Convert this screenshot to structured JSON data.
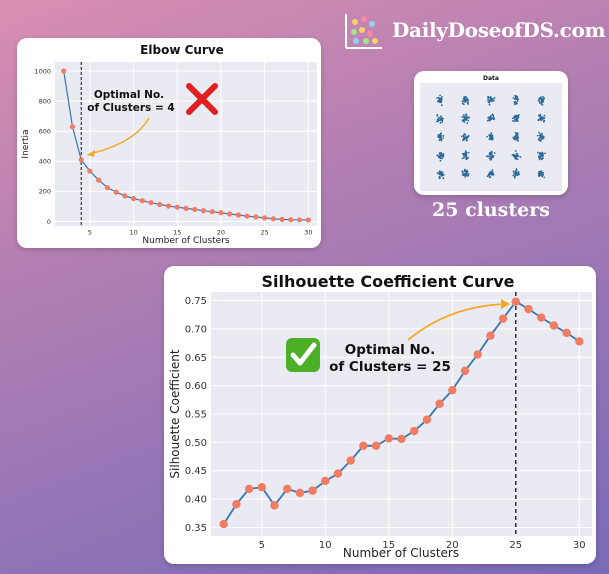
{
  "brand": {
    "name": "DailyDoseofDS.com",
    "logo_icon": "scatter-plot-logo-icon"
  },
  "data_caption": "25 clusters",
  "chart_data": [
    {
      "type": "line",
      "title": "Elbow Curve",
      "xlabel": "Number of Clusters",
      "ylabel": "Inertia",
      "x": [
        2,
        3,
        4,
        5,
        6,
        7,
        8,
        9,
        10,
        11,
        12,
        13,
        14,
        15,
        16,
        17,
        18,
        19,
        20,
        21,
        22,
        23,
        24,
        25,
        26,
        27,
        28,
        29,
        30
      ],
      "values": [
        1000,
        630,
        410,
        335,
        275,
        225,
        195,
        170,
        152,
        138,
        125,
        113,
        103,
        95,
        87,
        80,
        72,
        65,
        58,
        50,
        43,
        36,
        30,
        24,
        18,
        14,
        12,
        11,
        10
      ],
      "xlim": [
        1,
        31
      ],
      "ylim": [
        -30,
        1060
      ],
      "xticks": [
        5,
        10,
        15,
        20,
        25,
        30
      ],
      "yticks": [
        0,
        200,
        400,
        600,
        800,
        1000
      ],
      "optimal_x": 4,
      "annotation": [
        "Optimal No.",
        "of Clusters = 4"
      ],
      "grid": true,
      "line_color": "#3b75af",
      "marker_color": "#f07c63",
      "arrow_color": "#f5a623",
      "status_icon": "cross-mark-icon",
      "status_color": "#e02020"
    },
    {
      "type": "scatter",
      "title": "Data",
      "clusters_grid": [
        5,
        5
      ],
      "point_color": "#2c6a99"
    },
    {
      "type": "line",
      "title": "Silhouette Coefficient Curve",
      "xlabel": "Number of Clusters",
      "ylabel": "Silhouette Coefficient",
      "x": [
        2,
        3,
        4,
        5,
        6,
        7,
        8,
        9,
        10,
        11,
        12,
        13,
        14,
        15,
        16,
        17,
        18,
        19,
        20,
        21,
        22,
        23,
        24,
        25,
        26,
        27,
        28,
        29,
        30
      ],
      "values": [
        0.356,
        0.391,
        0.418,
        0.421,
        0.389,
        0.418,
        0.411,
        0.415,
        0.432,
        0.445,
        0.468,
        0.494,
        0.494,
        0.507,
        0.506,
        0.52,
        0.54,
        0.568,
        0.592,
        0.626,
        0.655,
        0.688,
        0.718,
        0.748,
        0.735,
        0.72,
        0.706,
        0.693,
        0.678
      ],
      "xlim": [
        1,
        31
      ],
      "ylim": [
        0.335,
        0.765
      ],
      "xticks": [
        5,
        10,
        15,
        20,
        25,
        30
      ],
      "yticks": [
        0.35,
        0.4,
        0.45,
        0.5,
        0.55,
        0.6,
        0.65,
        0.7,
        0.75
      ],
      "optimal_x": 25,
      "annotation": [
        "Optimal No.",
        "of Clusters = 25"
      ],
      "grid": true,
      "line_color": "#3b75af",
      "marker_color": "#f07c63",
      "arrow_color": "#f5a623",
      "status_icon": "check-mark-icon",
      "status_color": "#4caf28"
    }
  ]
}
